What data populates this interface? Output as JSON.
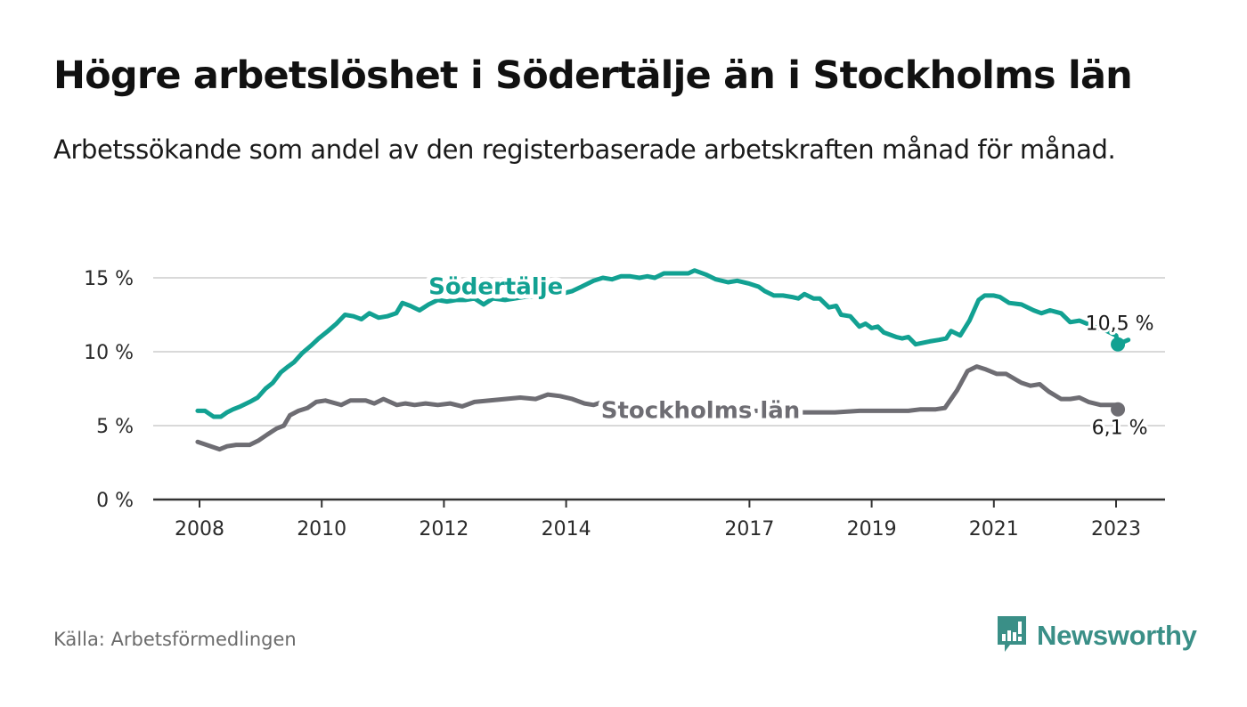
{
  "header": {
    "title": "Högre arbetslöshet i Södertälje än i Stockholms län",
    "subtitle": "Arbetssökande som andel av den registerbaserade arbetskraften månad för månad."
  },
  "footer": {
    "source": "Källa: Arbetsförmedlingen",
    "brand": "Newsworthy",
    "brand_icon": "bar-chart-speech-bubble-icon"
  },
  "colors": {
    "sodertalje": "#12a192",
    "stockholm": "#6e6d73",
    "grid": "#d9d9d9",
    "axis": "#333333",
    "brand": "#3a8f87"
  },
  "chart_data": {
    "type": "line",
    "title": "Högre arbetslöshet i Södertälje än i Stockholms län",
    "subtitle": "Arbetssökande som andel av den registerbaserade arbetskraften månad för månad.",
    "xlabel": "",
    "ylabel": "",
    "xlim": [
      2007.3,
      2023.8
    ],
    "ylim": [
      0,
      15
    ],
    "grid": true,
    "legend": "inline labels",
    "y_ticks": [
      {
        "value": 0,
        "label": "0 %"
      },
      {
        "value": 5,
        "label": "5 %"
      },
      {
        "value": 10,
        "label": "10 %"
      },
      {
        "value": 15,
        "label": "15 %"
      }
    ],
    "x_ticks": [
      {
        "value": 2008,
        "label": "2008"
      },
      {
        "value": 2010,
        "label": "2010"
      },
      {
        "value": 2012,
        "label": "2012"
      },
      {
        "value": 2014,
        "label": "2014"
      },
      {
        "value": 2017,
        "label": "2017"
      },
      {
        "value": 2019,
        "label": "2019"
      },
      {
        "value": 2021,
        "label": "2021"
      },
      {
        "value": 2023,
        "label": "2023"
      }
    ],
    "series": [
      {
        "name": "Södertälje",
        "color": "#12a192",
        "label_at": [
          2012.85,
          13.9
        ],
        "end_label": "10,5 %",
        "points": [
          [
            2007.97,
            6.0
          ],
          [
            2008.09,
            6.0
          ],
          [
            2008.23,
            5.6
          ],
          [
            2008.35,
            5.6
          ],
          [
            2008.45,
            5.9
          ],
          [
            2008.55,
            6.1
          ],
          [
            2008.67,
            6.3
          ],
          [
            2008.82,
            6.6
          ],
          [
            2008.95,
            6.9
          ],
          [
            2009.08,
            7.5
          ],
          [
            2009.2,
            7.9
          ],
          [
            2009.33,
            8.6
          ],
          [
            2009.45,
            9.0
          ],
          [
            2009.55,
            9.3
          ],
          [
            2009.68,
            9.9
          ],
          [
            2009.82,
            10.4
          ],
          [
            2009.95,
            10.9
          ],
          [
            2010.1,
            11.4
          ],
          [
            2010.24,
            11.9
          ],
          [
            2010.38,
            12.5
          ],
          [
            2010.52,
            12.4
          ],
          [
            2010.65,
            12.2
          ],
          [
            2010.78,
            12.6
          ],
          [
            2010.93,
            12.3
          ],
          [
            2011.07,
            12.4
          ],
          [
            2011.22,
            12.6
          ],
          [
            2011.32,
            13.3
          ],
          [
            2011.45,
            13.1
          ],
          [
            2011.6,
            12.8
          ],
          [
            2011.75,
            13.2
          ],
          [
            2011.9,
            13.5
          ],
          [
            2012.05,
            13.4
          ],
          [
            2012.2,
            13.5
          ],
          [
            2012.35,
            13.5
          ],
          [
            2012.5,
            13.6
          ],
          [
            2012.65,
            13.2
          ],
          [
            2012.8,
            13.6
          ],
          [
            2013.0,
            13.5
          ],
          [
            2013.3,
            13.7
          ],
          [
            2013.6,
            13.8
          ],
          [
            2013.9,
            13.9
          ],
          [
            2014.1,
            14.1
          ],
          [
            2014.25,
            14.4
          ],
          [
            2014.45,
            14.8
          ],
          [
            2014.6,
            15.0
          ],
          [
            2014.75,
            14.9
          ],
          [
            2014.9,
            15.1
          ],
          [
            2015.05,
            15.1
          ],
          [
            2015.2,
            15.0
          ],
          [
            2015.33,
            15.1
          ],
          [
            2015.45,
            15.0
          ],
          [
            2015.6,
            15.3
          ],
          [
            2015.8,
            15.3
          ],
          [
            2016.0,
            15.3
          ],
          [
            2016.1,
            15.5
          ],
          [
            2016.3,
            15.2
          ],
          [
            2016.45,
            14.9
          ],
          [
            2016.65,
            14.7
          ],
          [
            2016.8,
            14.8
          ],
          [
            2017.0,
            14.6
          ],
          [
            2017.15,
            14.4
          ],
          [
            2017.25,
            14.1
          ],
          [
            2017.4,
            13.8
          ],
          [
            2017.55,
            13.8
          ],
          [
            2017.7,
            13.7
          ],
          [
            2017.8,
            13.6
          ],
          [
            2017.9,
            13.9
          ],
          [
            2018.05,
            13.6
          ],
          [
            2018.15,
            13.6
          ],
          [
            2018.3,
            13.0
          ],
          [
            2018.42,
            13.1
          ],
          [
            2018.5,
            12.5
          ],
          [
            2018.65,
            12.4
          ],
          [
            2018.8,
            11.7
          ],
          [
            2018.9,
            11.9
          ],
          [
            2019.0,
            11.6
          ],
          [
            2019.1,
            11.7
          ],
          [
            2019.2,
            11.3
          ],
          [
            2019.4,
            11.0
          ],
          [
            2019.5,
            10.9
          ],
          [
            2019.6,
            11.0
          ],
          [
            2019.72,
            10.5
          ],
          [
            2019.95,
            10.7
          ],
          [
            2020.1,
            10.8
          ],
          [
            2020.22,
            10.9
          ],
          [
            2020.3,
            11.4
          ],
          [
            2020.45,
            11.1
          ],
          [
            2020.6,
            12.1
          ],
          [
            2020.75,
            13.5
          ],
          [
            2020.85,
            13.8
          ],
          [
            2021.0,
            13.8
          ],
          [
            2021.1,
            13.7
          ],
          [
            2021.25,
            13.3
          ],
          [
            2021.45,
            13.2
          ],
          [
            2021.65,
            12.8
          ],
          [
            2021.78,
            12.6
          ],
          [
            2021.92,
            12.8
          ],
          [
            2022.1,
            12.6
          ],
          [
            2022.25,
            12.0
          ],
          [
            2022.4,
            12.1
          ],
          [
            2022.7,
            11.6
          ],
          [
            2022.85,
            11.4
          ],
          [
            2023.0,
            11.1
          ],
          [
            2023.2,
            10.8
          ],
          [
            2023.03,
            10.5
          ]
        ]
      },
      {
        "name": "Stockholms län",
        "color": "#6e6d73",
        "label_at": [
          2016.2,
          5.5
        ],
        "end_label": "6,1 %",
        "points": [
          [
            2007.97,
            3.9
          ],
          [
            2008.33,
            3.4
          ],
          [
            2008.45,
            3.6
          ],
          [
            2008.6,
            3.7
          ],
          [
            2008.82,
            3.7
          ],
          [
            2008.97,
            4.0
          ],
          [
            2009.11,
            4.4
          ],
          [
            2009.26,
            4.8
          ],
          [
            2009.38,
            5.0
          ],
          [
            2009.48,
            5.7
          ],
          [
            2009.62,
            6.0
          ],
          [
            2009.77,
            6.2
          ],
          [
            2009.91,
            6.6
          ],
          [
            2010.06,
            6.7
          ],
          [
            2010.32,
            6.4
          ],
          [
            2010.47,
            6.7
          ],
          [
            2010.72,
            6.7
          ],
          [
            2010.86,
            6.5
          ],
          [
            2011.01,
            6.8
          ],
          [
            2011.23,
            6.4
          ],
          [
            2011.37,
            6.5
          ],
          [
            2011.52,
            6.4
          ],
          [
            2011.7,
            6.5
          ],
          [
            2011.9,
            6.4
          ],
          [
            2012.1,
            6.5
          ],
          [
            2012.3,
            6.3
          ],
          [
            2012.5,
            6.6
          ],
          [
            2012.75,
            6.7
          ],
          [
            2013.0,
            6.8
          ],
          [
            2013.25,
            6.9
          ],
          [
            2013.5,
            6.8
          ],
          [
            2013.7,
            7.1
          ],
          [
            2013.9,
            7.0
          ],
          [
            2014.1,
            6.8
          ],
          [
            2014.3,
            6.5
          ],
          [
            2014.45,
            6.4
          ],
          [
            2014.6,
            6.6
          ],
          [
            2014.85,
            6.4
          ],
          [
            2015.1,
            6.4
          ],
          [
            2015.3,
            6.3
          ],
          [
            2015.5,
            6.4
          ],
          [
            2015.75,
            6.4
          ],
          [
            2016.0,
            6.3
          ],
          [
            2016.25,
            6.3
          ],
          [
            2016.45,
            6.0
          ],
          [
            2016.8,
            6.0
          ],
          [
            2017.2,
            6.0
          ],
          [
            2017.6,
            5.9
          ],
          [
            2018.0,
            5.9
          ],
          [
            2018.4,
            5.9
          ],
          [
            2018.8,
            6.0
          ],
          [
            2019.2,
            6.0
          ],
          [
            2019.6,
            6.0
          ],
          [
            2019.8,
            6.1
          ],
          [
            2020.05,
            6.1
          ],
          [
            2020.2,
            6.2
          ],
          [
            2020.4,
            7.4
          ],
          [
            2020.57,
            8.7
          ],
          [
            2020.72,
            9.0
          ],
          [
            2020.87,
            8.8
          ],
          [
            2021.05,
            8.5
          ],
          [
            2021.2,
            8.5
          ],
          [
            2021.45,
            7.9
          ],
          [
            2021.6,
            7.7
          ],
          [
            2021.75,
            7.8
          ],
          [
            2021.9,
            7.3
          ],
          [
            2022.1,
            6.8
          ],
          [
            2022.25,
            6.8
          ],
          [
            2022.4,
            6.9
          ],
          [
            2022.55,
            6.6
          ],
          [
            2022.75,
            6.4
          ],
          [
            2022.9,
            6.4
          ],
          [
            2023.0,
            6.4
          ],
          [
            2023.03,
            6.1
          ]
        ]
      }
    ]
  }
}
